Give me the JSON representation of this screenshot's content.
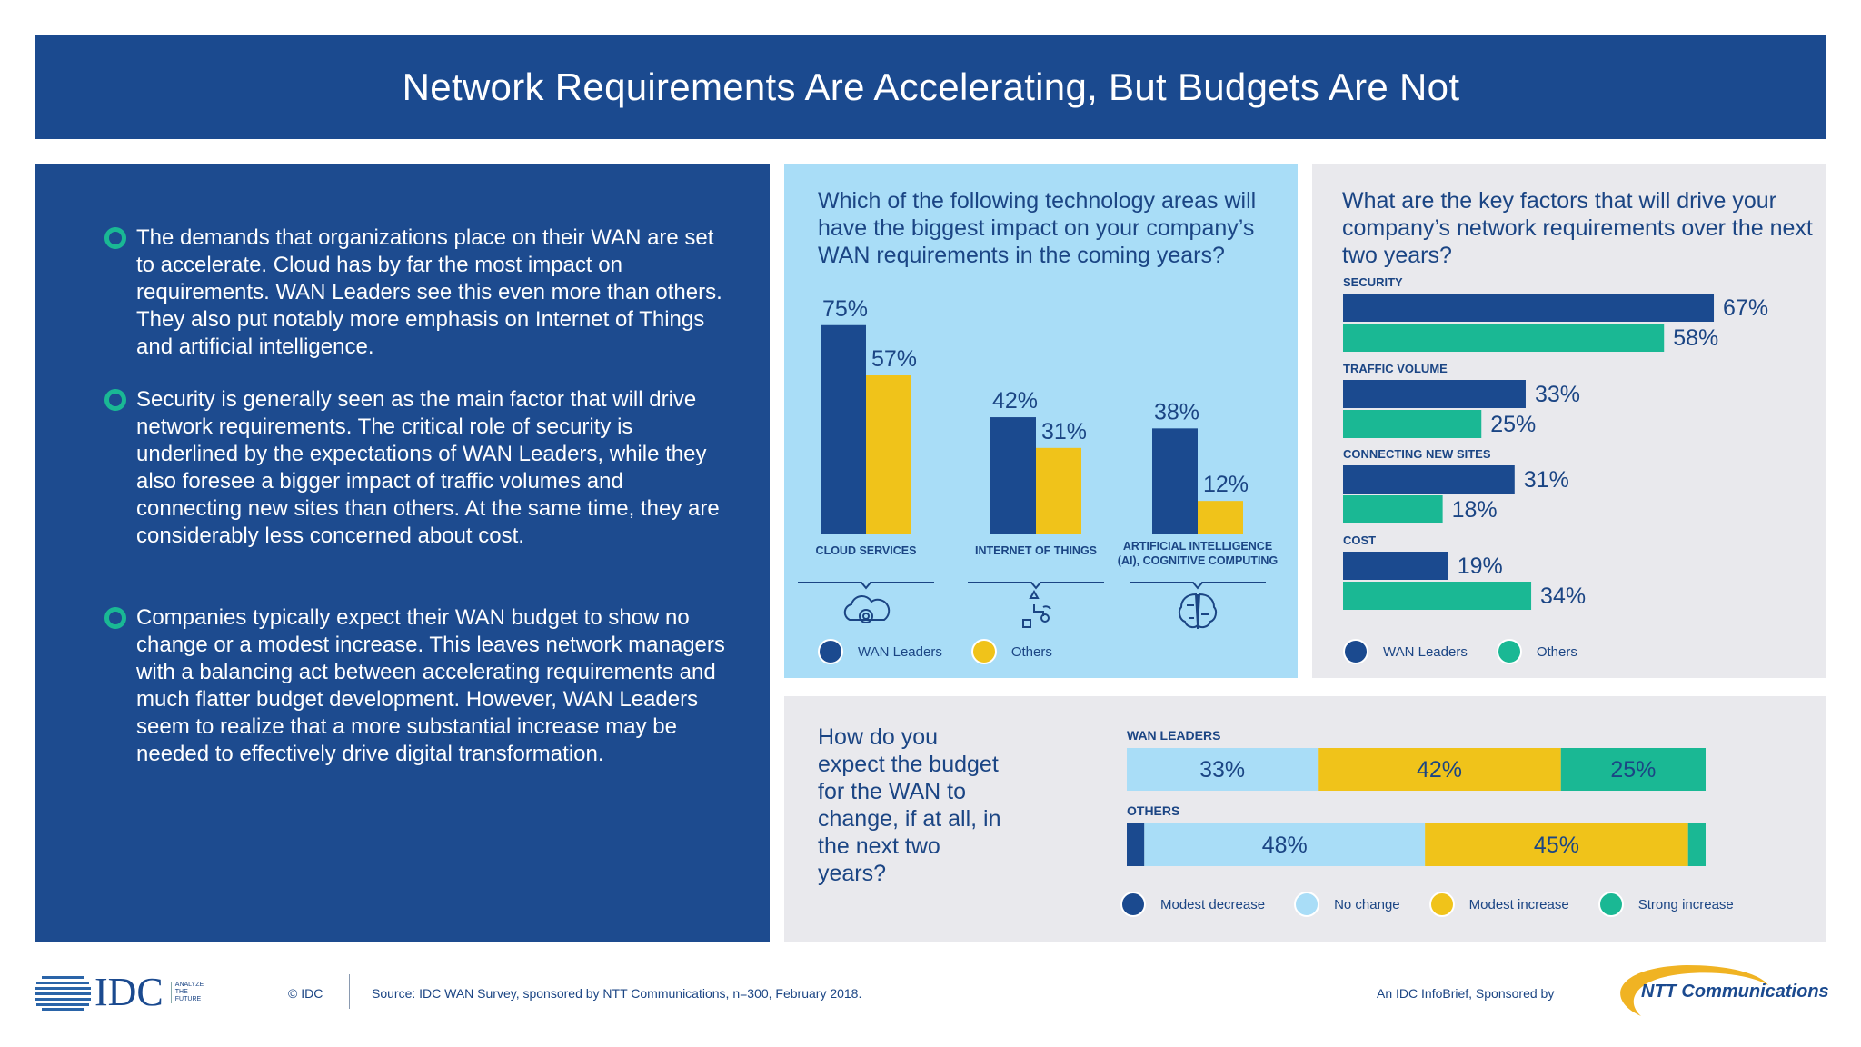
{
  "title": "Network Requirements Are Accelerating, But Budgets Are Not",
  "bullets": [
    "The demands that organizations place on their WAN are set to accelerate. Cloud has by far the most impact on requirements. WAN Leaders see this even more than others. They also put notably more emphasis on Internet of Things and artificial intelligence.",
    "Security is generally seen as the main factor that will drive network requirements. The critical role of security is underlined by the expectations of WAN Leaders, while they also foresee a bigger impact of traffic volumes and connecting new sites than others. At the same time, they are considerably less concerned about cost.",
    "Companies typically expect their WAN budget to show no change or a modest increase. This leaves network managers with a balancing act between accelerating requirements and much flatter budget development. However, WAN Leaders seem to realize that a more substantial increase may be needed to effectively drive digital transformation."
  ],
  "colors": {
    "navy": "#1b4a8f",
    "yellow": "#f0c31a",
    "teal": "#1ab894",
    "light_blue": "#a9ddf7"
  },
  "chart_data": [
    {
      "type": "bar",
      "title": "Which of the following technology areas will have the biggest impact on your company’s WAN requirements in the coming years?",
      "categories": [
        "CLOUD SERVICES",
        "INTERNET OF THINGS",
        "ARTIFICIAL INTELLIGENCE (AI), COGNITIVE COMPUTING"
      ],
      "category_icons": [
        "cloud-gear-icon",
        "iot-devices-icon",
        "brain-circuit-icon"
      ],
      "series": [
        {
          "name": "WAN Leaders",
          "values": [
            75,
            42,
            38
          ],
          "labels": [
            "75%",
            "42%",
            "38%"
          ],
          "color": "#1b4a8f"
        },
        {
          "name": "Others",
          "values": [
            57,
            31,
            12
          ],
          "labels": [
            "57%",
            "31%",
            "12%"
          ],
          "color": "#f0c31a"
        }
      ],
      "ylim": [
        0,
        100
      ],
      "legend": "bottom"
    },
    {
      "type": "bar",
      "orientation": "horizontal",
      "title": "What are the key factors that will drive your company’s network requirements over the next two years?",
      "categories": [
        "SECURITY",
        "TRAFFIC VOLUME",
        "CONNECTING NEW SITES",
        "COST"
      ],
      "series": [
        {
          "name": "WAN Leaders",
          "values": [
            67,
            33,
            31,
            19
          ],
          "labels": [
            "67%",
            "33%",
            "31%",
            "19%"
          ],
          "color": "#1b4a8f"
        },
        {
          "name": "Others",
          "values": [
            58,
            25,
            18,
            34
          ],
          "labels": [
            "58%",
            "25%",
            "18%",
            "34%"
          ],
          "color": "#1ab894"
        }
      ],
      "xlim": [
        0,
        100
      ],
      "legend": "bottom"
    },
    {
      "type": "bar",
      "orientation": "horizontal",
      "stacked": true,
      "title": "How do you expect the budget for the WAN to change, if at all, in the next two years?",
      "categories": [
        "WAN LEADERS",
        "OTHERS"
      ],
      "segments": [
        "Modest decrease",
        "No change",
        "Modest increase",
        "Strong increase"
      ],
      "segment_colors": [
        "#1b4a8f",
        "#a9ddf7",
        "#f0c31a",
        "#1ab894"
      ],
      "values": [
        [
          0,
          33,
          42,
          25
        ],
        [
          3,
          48,
          45,
          3
        ]
      ],
      "labels": [
        [
          "",
          "33%",
          "42%",
          "25%"
        ],
        [
          "",
          "48%",
          "45%",
          ""
        ]
      ],
      "legend": "bottom"
    }
  ],
  "footer": {
    "logo_text": "IDC",
    "logo_tagline": "ANALYZE THE FUTURE",
    "copyright": "© IDC",
    "source": "Source: IDC WAN Survey, sponsored by NTT Communications, n=300, February 2018.",
    "sponsor_text": "An IDC InfoBrief, Sponsored by",
    "sponsor_logo": "NTT Communications"
  }
}
